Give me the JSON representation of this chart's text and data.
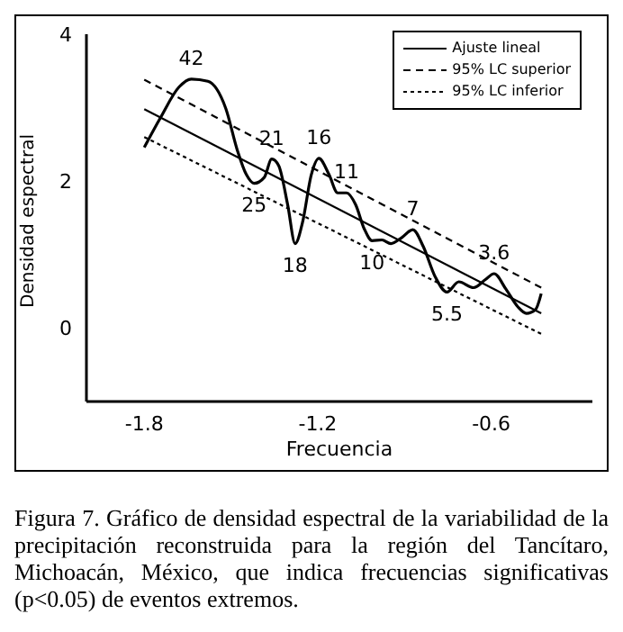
{
  "chart_data": {
    "type": "line",
    "xlabel": "Frecuencia",
    "ylabel": "Densidad espectral",
    "xlim": [
      -2,
      -0.25
    ],
    "ylim": [
      -1,
      4
    ],
    "xticks": [
      -1.8,
      -1.2,
      -0.6
    ],
    "yticks": [
      0,
      2,
      4
    ],
    "grid": false,
    "legend": "top right",
    "marker": "none",
    "series": [
      {
        "color": "#000000",
        "line_style": "solid",
        "x": [
          -1.8,
          -1.743,
          -1.68,
          -1.637,
          -1.58,
          -1.518,
          -1.478,
          -1.447,
          -1.42,
          -1.385,
          -1.359,
          -1.335,
          -1.304,
          -1.278,
          -1.253,
          -1.222,
          -1.196,
          -1.161,
          -1.131,
          -1.1,
          -1.069,
          -1.039,
          -1.012,
          -0.978,
          -0.947,
          -0.91,
          -0.871,
          -0.835,
          -0.794,
          -0.753,
          -0.712,
          -0.661,
          -0.62,
          -0.59,
          -0.549,
          -0.508,
          -0.478,
          -0.447,
          -0.427
        ],
        "values": [
          2.46,
          2.87,
          3.28,
          3.39,
          3.36,
          2.99,
          2.42,
          2.09,
          1.97,
          2.05,
          2.3,
          2.21,
          1.68,
          1.15,
          1.43,
          2.09,
          2.31,
          2.09,
          1.84,
          1.84,
          1.68,
          1.35,
          1.19,
          1.2,
          1.15,
          1.23,
          1.34,
          1.11,
          0.7,
          0.49,
          0.63,
          0.55,
          0.66,
          0.74,
          0.53,
          0.29,
          0.2,
          0.25,
          0.47
        ]
      },
      {
        "name": "Ajuste lineal",
        "color": "#000000",
        "line_style": "solid",
        "x": [
          -1.8,
          -0.427
        ],
        "values": [
          2.98,
          0.2
        ]
      },
      {
        "name": "95% LC superior",
        "color": "#000000",
        "line_style": "dashed",
        "x": [
          -1.8,
          -0.427
        ],
        "values": [
          3.38,
          0.55
        ]
      },
      {
        "name": "95% LC inferior",
        "color": "#000000",
        "line_style": "dotted",
        "x": [
          -1.8,
          -0.427
        ],
        "values": [
          2.6,
          -0.08
        ]
      }
    ],
    "annotations": [
      {
        "text": "42",
        "x": -1.637,
        "y": 3.39
      },
      {
        "text": "21",
        "x": -1.359,
        "y": 2.3
      },
      {
        "text": "25",
        "x": -1.42,
        "y": 1.97
      },
      {
        "text": "16",
        "x": -1.196,
        "y": 2.31
      },
      {
        "text": "18",
        "x": -1.278,
        "y": 1.15
      },
      {
        "text": "11",
        "x": -1.1,
        "y": 1.84
      },
      {
        "text": "10",
        "x": -1.012,
        "y": 1.19
      },
      {
        "text": "7",
        "x": -0.871,
        "y": 1.34
      },
      {
        "text": "5.5",
        "x": -0.753,
        "y": 0.49
      },
      {
        "text": "3.6",
        "x": -0.59,
        "y": 0.74
      },
      "Figura 7. Gráfico de densidad espectral de la variabilidad de la precipitación reconstruida para la región del Tancítaro, Michoacán, México, que indica frecuencias significativas (p<0.05) de eventos extremos."
    ]
  }
}
